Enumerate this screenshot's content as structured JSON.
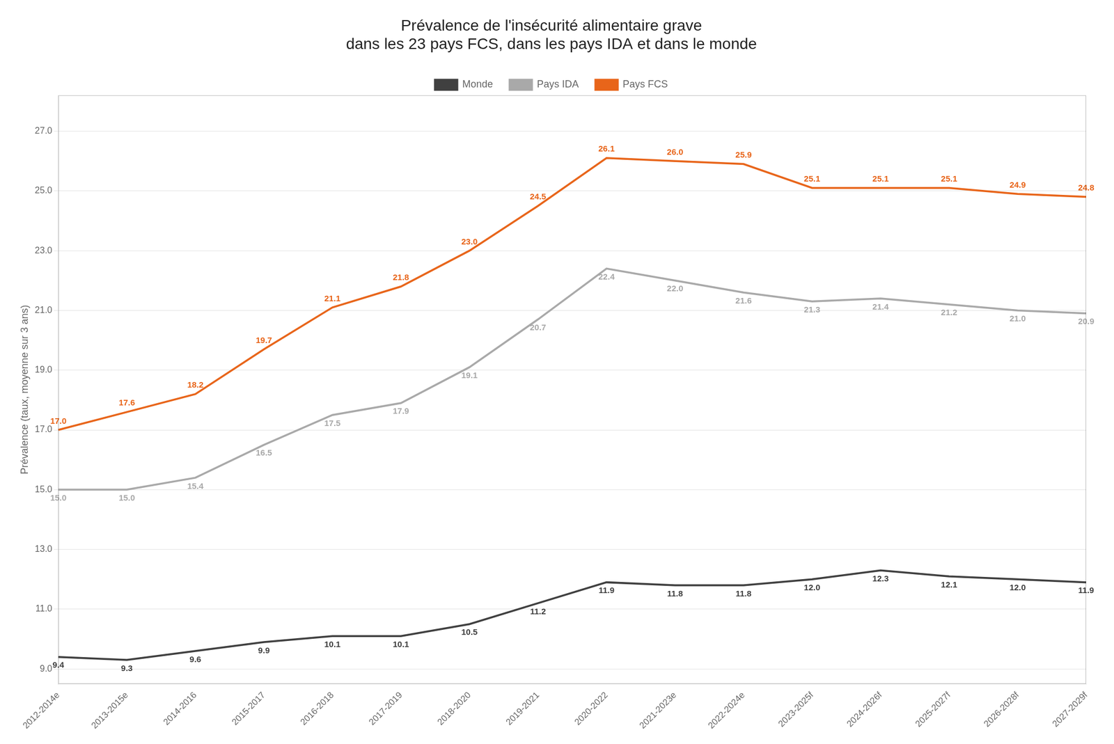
{
  "chart_data": {
    "type": "line",
    "title": "Prévalence de l'insécurité alimentaire grave\ndans les 23 pays FCS, dans les pays IDA et dans le monde",
    "ylabel": "Prévalence (taux, moyenne sur 3 ans)",
    "categories": [
      "2012-2014e",
      "2013-2015e",
      "2014-2016",
      "2015-2017",
      "2016-2018",
      "2017-2019",
      "2018-2020",
      "2019-2021",
      "2020-2022",
      "2021-2023e",
      "2022-2024e",
      "2023-2025f",
      "2024-2026f",
      "2025-2027f",
      "2026-2028f",
      "2027-2029f"
    ],
    "series": [
      {
        "name": "Monde",
        "color": "#404040",
        "values": [
          9.4,
          9.3,
          9.6,
          9.9,
          10.1,
          10.1,
          10.5,
          11.2,
          11.9,
          11.8,
          11.8,
          12.0,
          12.3,
          12.1,
          12.0,
          11.9
        ],
        "value_labels": [
          "9.4",
          "9.3",
          "9.6",
          "9.9",
          "10.1",
          "10.1",
          "10.5",
          "11.2",
          "11.9",
          "11.8",
          "11.8",
          "12.0",
          "12.3",
          "12.1",
          "12.0",
          "11.9"
        ]
      },
      {
        "name": "Pays IDA",
        "color": "#A9A9A9",
        "values": [
          15.0,
          15.0,
          15.4,
          16.5,
          17.5,
          17.9,
          19.1,
          20.7,
          22.4,
          22.0,
          21.6,
          21.3,
          21.4,
          21.2,
          21.0,
          20.9
        ],
        "value_labels": [
          "15.0",
          "15.0",
          "15.4",
          "16.5",
          "17.5",
          "17.9",
          "19.1",
          "20.7",
          "22.4",
          "22.0",
          "21.6",
          "21.3",
          "21.4",
          "21.2",
          "21.0",
          "20.9"
        ]
      },
      {
        "name": "Pays FCS",
        "color": "#E8651A",
        "values": [
          17.0,
          17.6,
          18.2,
          19.7,
          21.1,
          21.8,
          23.0,
          24.5,
          26.1,
          26.0,
          25.9,
          25.1,
          25.1,
          25.1,
          24.9,
          24.8
        ],
        "value_labels": [
          "17.0",
          "17.6",
          "18.2",
          "19.7",
          "21.1",
          "21.8",
          "23.0",
          "24.5",
          "26.1",
          "26.0",
          "25.9",
          "25.1",
          "25.1",
          "25.1",
          "24.9",
          "24.8"
        ]
      }
    ],
    "ylim": [
      8.5,
      28.2
    ],
    "yticks": [
      {
        "value": 9,
        "label": "9.0"
      },
      {
        "value": 11,
        "label": "11.0"
      },
      {
        "value": 13,
        "label": "13.0"
      },
      {
        "value": 15,
        "label": "15.0"
      },
      {
        "value": 17,
        "label": "17.0"
      },
      {
        "value": 19,
        "label": "19.0"
      },
      {
        "value": 21,
        "label": "21.0"
      },
      {
        "value": 23,
        "label": "23.0"
      },
      {
        "value": 25,
        "label": "25.0"
      },
      {
        "value": 27,
        "label": "27.0"
      }
    ],
    "grid": true,
    "legend": "top",
    "data_labels": true
  }
}
